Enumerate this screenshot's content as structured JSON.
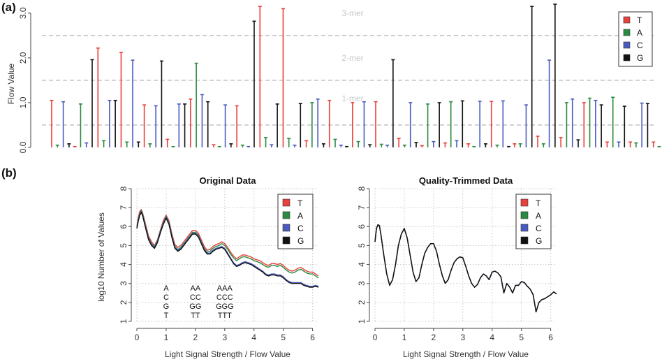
{
  "panel_a": {
    "label": "(a)",
    "ylabel": "Flow Value",
    "y_ticks": [
      "0.0",
      "1.0",
      "2.0",
      "3.0"
    ],
    "mer_labels": [
      "1-mer",
      "2-mer",
      "3-mer"
    ],
    "legend": [
      {
        "label": "T",
        "color": "#e8403a"
      },
      {
        "label": "A",
        "color": "#2a8a40"
      },
      {
        "label": "C",
        "color": "#4a5bbf"
      },
      {
        "label": "G",
        "color": "#111111"
      }
    ]
  },
  "panel_b": {
    "label": "(b)",
    "ylabel": "log10 Number of Values",
    "xlabel": "Light Signal Strength / Flow Value",
    "x_ticks": [
      "0",
      "1",
      "2",
      "3",
      "4",
      "5",
      "6"
    ],
    "y_ticks": [
      "1",
      "2",
      "3",
      "4",
      "5",
      "6",
      "7",
      "8"
    ],
    "left_title": "Original Data",
    "right_title": "Quality-Trimmed Data",
    "legend": [
      {
        "label": "T",
        "color": "#e8403a"
      },
      {
        "label": "A",
        "color": "#2a8a40"
      },
      {
        "label": "C",
        "color": "#4a5bbf"
      },
      {
        "label": "G",
        "color": "#111111"
      }
    ],
    "annotations": [
      {
        "x": 1,
        "lines": [
          "A",
          "C",
          "G",
          "T"
        ]
      },
      {
        "x": 2,
        "lines": [
          "AA",
          "CC",
          "GG",
          "TT"
        ]
      },
      {
        "x": 3,
        "lines": [
          "AAA",
          "CCC",
          "GGG",
          "TTT"
        ]
      }
    ]
  },
  "chart_data": [
    {
      "type": "bar",
      "title": "",
      "xlabel": "",
      "ylabel": "Flow Value",
      "ylim": [
        0,
        3.2
      ],
      "grid": "dashed horizontal reference lines at 0.5, 1.5, 2.5",
      "legend_position": "top-right",
      "nucleotide_cycle": [
        "T",
        "A",
        "C",
        "G"
      ],
      "values": [
        1.05,
        0.05,
        1.02,
        0.08,
        0.02,
        0.97,
        0.1,
        1.96,
        2.22,
        0.15,
        1.05,
        1.05,
        2.12,
        0.12,
        1.95,
        0.12,
        0.95,
        0.08,
        0.93,
        1.93,
        0.18,
        0.02,
        0.97,
        0.97,
        1.08,
        1.88,
        1.18,
        1.02,
        0.06,
        0.02,
        0.95,
        0.08,
        0.93,
        0.05,
        0.02,
        2.82,
        3.15,
        0.22,
        0.06,
        0.97,
        3.1,
        0.2,
        0.05,
        0.98,
        0.15,
        1.0,
        1.08,
        0.08,
        1.05,
        0.18,
        0.05,
        0.02,
        1.0,
        0.13,
        1.02,
        0.06,
        1.02,
        0.07,
        0.05,
        1.96,
        0.2,
        0.05,
        1.0,
        0.11,
        0.04,
        0.97,
        0.13,
        1.0,
        0.1,
        1.02,
        0.15,
        1.04,
        0.08,
        0.02,
        1.03,
        0.08,
        1.03,
        0.05,
        1.04,
        0.02,
        0.08,
        0.08,
        0.95,
        3.15,
        0.25,
        0.08,
        1.95,
        3.2,
        0.22,
        1.0,
        1.08,
        0.17,
        1.0,
        1.1,
        1.05,
        0.95,
        0.12,
        1.12,
        0.12,
        0.92,
        0.12,
        0.1,
        0.99,
        0.98,
        0.12,
        0.02
      ]
    },
    {
      "type": "line",
      "title": "Original Data",
      "xlabel": "Light Signal Strength / Flow Value",
      "ylabel": "log10 Number of Values",
      "xlim": [
        0,
        6.2
      ],
      "ylim": [
        1,
        8
      ],
      "grid": true,
      "legend_position": "top-right",
      "x": [
        0,
        0.05,
        0.1,
        0.15,
        0.2,
        0.3,
        0.4,
        0.5,
        0.6,
        0.7,
        0.8,
        0.9,
        1.0,
        1.1,
        1.2,
        1.3,
        1.4,
        1.5,
        1.6,
        1.7,
        1.8,
        1.9,
        2.0,
        2.1,
        2.2,
        2.3,
        2.4,
        2.5,
        2.6,
        2.7,
        2.8,
        2.9,
        3.0,
        3.1,
        3.2,
        3.3,
        3.4,
        3.5,
        3.6,
        3.7,
        3.8,
        3.9,
        4.0,
        4.1,
        4.2,
        4.3,
        4.4,
        4.5,
        4.6,
        4.7,
        4.8,
        4.9,
        5.0,
        5.1,
        5.2,
        5.3,
        5.4,
        5.5,
        5.6,
        5.7,
        5.8,
        5.9,
        6.0,
        6.1,
        6.2
      ],
      "series": [
        {
          "name": "T",
          "values": [
            6.0,
            6.5,
            6.8,
            6.9,
            6.7,
            6.1,
            5.5,
            5.2,
            5.0,
            5.3,
            5.8,
            6.3,
            6.6,
            6.3,
            5.6,
            5.05,
            4.9,
            5.0,
            5.2,
            5.4,
            5.6,
            5.8,
            5.8,
            5.65,
            5.3,
            4.95,
            4.75,
            4.8,
            4.95,
            5.05,
            5.1,
            5.2,
            5.1,
            4.9,
            4.65,
            4.45,
            4.3,
            4.4,
            4.5,
            4.5,
            4.45,
            4.4,
            4.3,
            4.25,
            4.2,
            4.1,
            4.0,
            3.95,
            4.05,
            4.05,
            4.0,
            4.05,
            3.95,
            3.8,
            3.7,
            3.65,
            3.7,
            3.8,
            3.85,
            3.75,
            3.65,
            3.6,
            3.6,
            3.5,
            3.4
          ]
        },
        {
          "name": "A",
          "values": [
            6.0,
            6.4,
            6.7,
            6.85,
            6.65,
            6.0,
            5.4,
            5.1,
            4.95,
            5.25,
            5.75,
            6.2,
            6.55,
            6.2,
            5.5,
            4.95,
            4.8,
            4.9,
            5.1,
            5.3,
            5.5,
            5.7,
            5.7,
            5.55,
            5.2,
            4.85,
            4.65,
            4.7,
            4.85,
            4.95,
            5.0,
            5.1,
            5.0,
            4.8,
            4.55,
            4.35,
            4.2,
            4.3,
            4.4,
            4.4,
            4.35,
            4.3,
            4.2,
            4.15,
            4.1,
            4.0,
            3.9,
            3.85,
            3.95,
            3.95,
            3.9,
            3.95,
            3.85,
            3.7,
            3.6,
            3.55,
            3.6,
            3.7,
            3.75,
            3.65,
            3.55,
            3.5,
            3.5,
            3.4,
            3.3
          ]
        },
        {
          "name": "C",
          "values": [
            5.9,
            6.35,
            6.65,
            6.8,
            6.6,
            5.95,
            5.35,
            5.05,
            4.9,
            5.2,
            5.7,
            6.15,
            6.5,
            6.15,
            5.45,
            4.9,
            4.75,
            4.85,
            5.05,
            5.25,
            5.45,
            5.65,
            5.65,
            5.5,
            5.15,
            4.8,
            4.6,
            4.6,
            4.75,
            4.85,
            4.9,
            4.95,
            4.85,
            4.6,
            4.35,
            4.1,
            3.95,
            4.0,
            4.1,
            4.15,
            4.1,
            4.05,
            3.95,
            3.85,
            3.75,
            3.65,
            3.5,
            3.45,
            3.5,
            3.5,
            3.45,
            3.45,
            3.35,
            3.2,
            3.1,
            3.05,
            3.05,
            3.05,
            3.05,
            2.95,
            2.9,
            2.85,
            2.85,
            2.9,
            2.85
          ]
        },
        {
          "name": "G",
          "values": [
            5.9,
            6.3,
            6.6,
            6.75,
            6.55,
            5.9,
            5.3,
            5.0,
            4.85,
            5.15,
            5.65,
            6.1,
            6.45,
            6.1,
            5.4,
            4.85,
            4.7,
            4.8,
            5.0,
            5.2,
            5.4,
            5.6,
            5.6,
            5.45,
            5.1,
            4.75,
            4.55,
            4.55,
            4.7,
            4.8,
            4.85,
            4.9,
            4.8,
            4.55,
            4.3,
            4.05,
            3.9,
            3.95,
            4.05,
            4.1,
            4.05,
            4.0,
            3.9,
            3.8,
            3.7,
            3.6,
            3.45,
            3.4,
            3.45,
            3.45,
            3.4,
            3.4,
            3.3,
            3.15,
            3.05,
            3.0,
            3.0,
            3.0,
            3.0,
            2.9,
            2.85,
            2.8,
            2.8,
            2.85,
            2.8
          ]
        }
      ],
      "annotations": [
        {
          "x": 1,
          "text": "A C G T"
        },
        {
          "x": 2,
          "text": "AA CC GG TT"
        },
        {
          "x": 3,
          "text": "AAA CCC GGG TTT"
        }
      ]
    },
    {
      "type": "line",
      "title": "Quality-Trimmed Data",
      "xlabel": "Light Signal Strength / Flow Value",
      "ylabel": "log10 Number of Values",
      "xlim": [
        0,
        6.2
      ],
      "ylim": [
        1,
        8
      ],
      "grid": true,
      "legend_position": "top-right",
      "x": [
        0,
        0.05,
        0.1,
        0.15,
        0.2,
        0.3,
        0.4,
        0.5,
        0.6,
        0.7,
        0.8,
        0.9,
        1.0,
        1.1,
        1.2,
        1.3,
        1.4,
        1.5,
        1.6,
        1.7,
        1.8,
        1.9,
        2.0,
        2.1,
        2.2,
        2.3,
        2.4,
        2.5,
        2.6,
        2.7,
        2.8,
        2.9,
        3.0,
        3.1,
        3.2,
        3.3,
        3.4,
        3.5,
        3.6,
        3.7,
        3.8,
        3.9,
        4.0,
        4.1,
        4.2,
        4.3,
        4.4,
        4.5,
        4.6,
        4.7,
        4.8,
        4.9,
        5.0,
        5.1,
        5.2,
        5.3,
        5.4,
        5.5,
        5.6,
        5.7,
        5.8,
        5.9,
        6.0,
        6.1,
        6.2
      ],
      "series": [
        {
          "name": "T",
          "values": [
            5.2,
            5.9,
            6.1,
            6.05,
            5.6,
            4.5,
            3.5,
            2.9,
            3.2,
            4.0,
            5.0,
            5.6,
            5.9,
            5.4,
            4.5,
            3.6,
            3.1,
            3.3,
            4.0,
            4.6,
            4.9,
            5.1,
            5.1,
            4.7,
            4.0,
            3.4,
            3.0,
            3.2,
            3.7,
            4.1,
            4.3,
            4.4,
            4.35,
            3.9,
            3.4,
            3.0,
            2.8,
            2.95,
            3.3,
            3.5,
            3.4,
            3.2,
            3.6,
            3.65,
            3.55,
            3.35,
            2.5,
            3.0,
            2.8,
            2.5,
            2.9,
            2.9,
            3.1,
            3.05,
            2.85,
            2.7,
            2.4,
            1.5,
            2.0,
            2.15,
            2.2,
            2.3,
            2.4,
            2.55,
            2.45
          ]
        },
        {
          "name": "A",
          "values": [
            5.2,
            5.9,
            6.1,
            6.05,
            5.6,
            4.5,
            3.5,
            2.9,
            3.2,
            4.0,
            5.0,
            5.6,
            5.9,
            5.4,
            4.5,
            3.6,
            3.1,
            3.3,
            4.0,
            4.6,
            4.9,
            5.1,
            5.1,
            4.7,
            4.0,
            3.4,
            3.0,
            3.2,
            3.7,
            4.1,
            4.3,
            4.4,
            4.35,
            3.9,
            3.4,
            3.0,
            2.8,
            2.95,
            3.3,
            3.5,
            3.4,
            3.2,
            3.6,
            3.65,
            3.55,
            3.35,
            2.5,
            3.0,
            2.8,
            2.5,
            2.9,
            2.9,
            3.1,
            3.05,
            2.85,
            2.7,
            2.4,
            1.5,
            2.0,
            2.15,
            2.2,
            2.3,
            2.4,
            2.55,
            2.45
          ]
        },
        {
          "name": "C",
          "values": [
            5.2,
            5.9,
            6.1,
            6.05,
            5.6,
            4.5,
            3.5,
            2.9,
            3.2,
            4.0,
            5.0,
            5.6,
            5.9,
            5.4,
            4.5,
            3.6,
            3.1,
            3.3,
            4.0,
            4.6,
            4.9,
            5.1,
            5.1,
            4.7,
            4.0,
            3.4,
            3.0,
            3.2,
            3.7,
            4.1,
            4.3,
            4.4,
            4.35,
            3.9,
            3.4,
            3.0,
            2.8,
            2.95,
            3.3,
            3.5,
            3.4,
            3.2,
            3.6,
            3.65,
            3.55,
            3.35,
            2.5,
            3.0,
            2.8,
            2.5,
            2.9,
            2.9,
            3.1,
            3.05,
            2.85,
            2.7,
            2.4,
            1.5,
            2.0,
            2.15,
            2.2,
            2.3,
            2.4,
            2.55,
            2.45
          ]
        },
        {
          "name": "G",
          "values": [
            5.2,
            5.9,
            6.1,
            6.05,
            5.6,
            4.5,
            3.5,
            2.9,
            3.2,
            4.0,
            5.0,
            5.6,
            5.9,
            5.4,
            4.5,
            3.6,
            3.1,
            3.3,
            4.0,
            4.6,
            4.9,
            5.1,
            5.1,
            4.7,
            4.0,
            3.4,
            3.0,
            3.2,
            3.7,
            4.1,
            4.3,
            4.4,
            4.35,
            3.9,
            3.4,
            3.0,
            2.8,
            2.95,
            3.3,
            3.5,
            3.4,
            3.2,
            3.6,
            3.65,
            3.55,
            3.35,
            2.5,
            3.0,
            2.8,
            2.5,
            2.9,
            2.9,
            3.1,
            3.05,
            2.85,
            2.7,
            2.4,
            1.5,
            2.0,
            2.15,
            2.2,
            2.3,
            2.4,
            2.55,
            2.45
          ]
        }
      ]
    }
  ]
}
